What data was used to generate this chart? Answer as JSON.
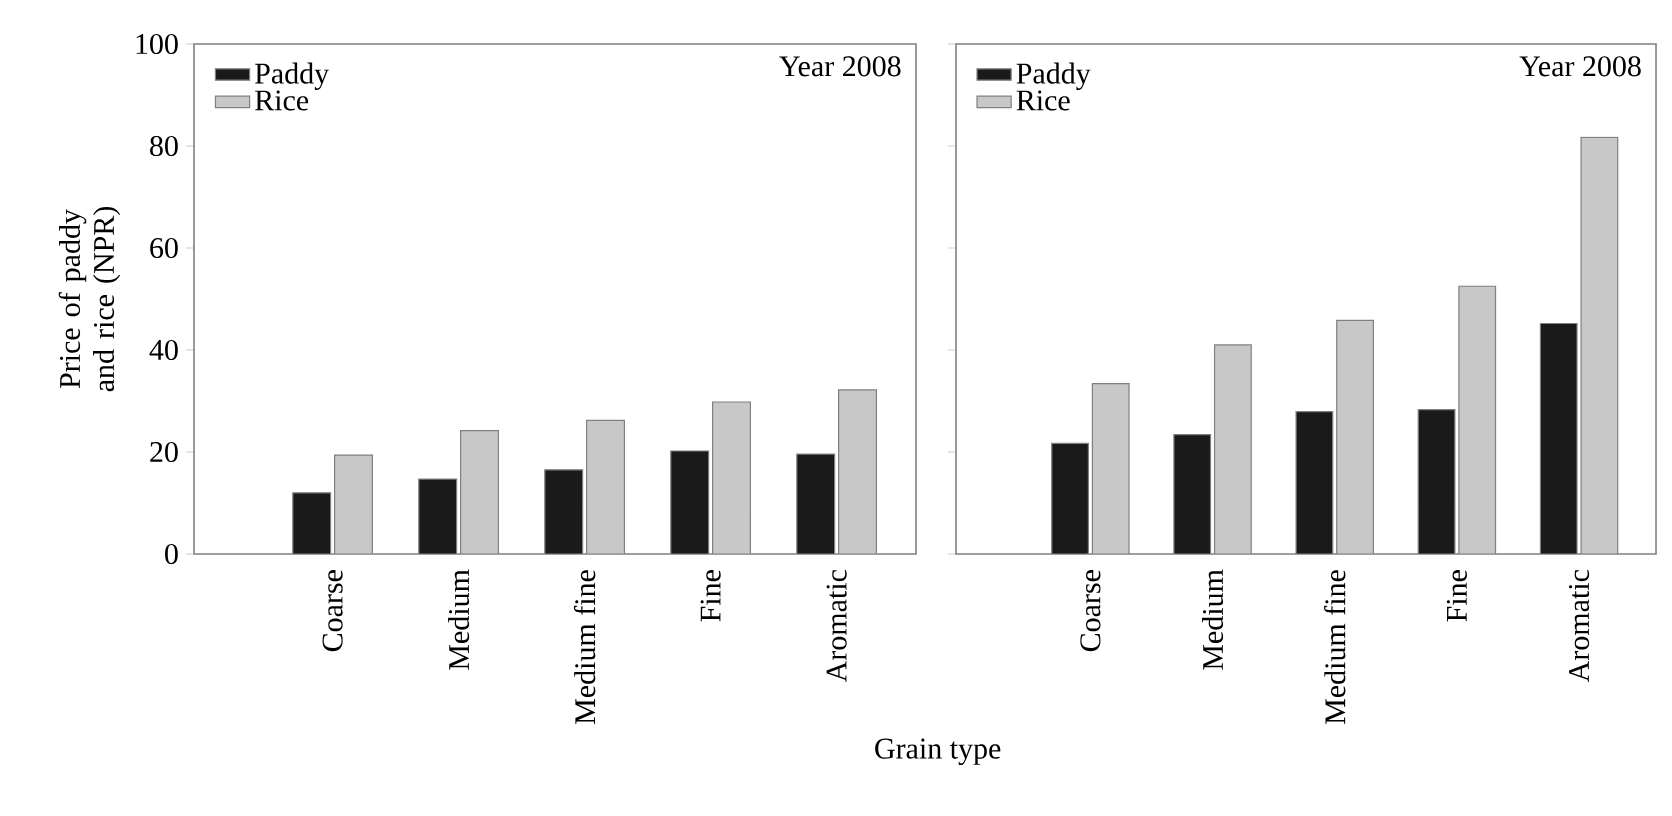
{
  "chart_data": [
    {
      "type": "bar",
      "categories": [
        "Coarse",
        "Medium",
        "Medium fine",
        "Fine",
        "Aromatic"
      ],
      "ylabel": "Price of paddy and rice (NPR)",
      "xlabel": "Grain type",
      "annotations": [
        "Year 2008"
      ],
      "ylim": [
        0,
        100
      ],
      "yticks": [
        0,
        20,
        40,
        60,
        80,
        100
      ],
      "legend": "top left",
      "series": [
        {
          "name": "Paddy",
          "color": "#1a1a1a",
          "values": [
            12,
            14.7,
            16.5,
            20.2,
            19.6
          ]
        },
        {
          "name": "Rice",
          "color": "#c8c8c8",
          "values": [
            19.4,
            24.2,
            26.2,
            29.8,
            32.2
          ]
        }
      ]
    },
    {
      "type": "bar",
      "categories": [
        "Coarse",
        "Medium",
        "Medium fine",
        "Fine",
        "Aromatic"
      ],
      "annotations": [
        "Year 2008"
      ],
      "ylim": [
        0,
        100
      ],
      "yticks": [
        0,
        20,
        40,
        60,
        80,
        100
      ],
      "tick_labels": "x",
      "legend": "top left",
      "series": [
        {
          "name": "Paddy",
          "color": "#1a1a1a",
          "values": [
            21.7,
            23.4,
            27.9,
            28.3,
            45.2
          ]
        },
        {
          "name": "Rice",
          "color": "#c8c8c8",
          "values": [
            33.4,
            41.0,
            45.8,
            52.5,
            81.7
          ]
        }
      ]
    }
  ]
}
